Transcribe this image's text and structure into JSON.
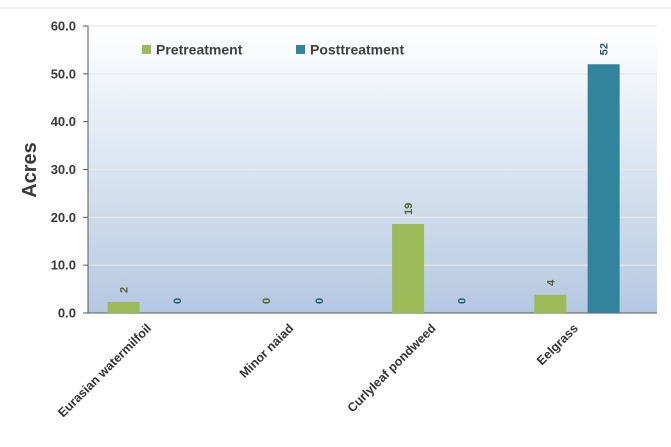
{
  "chart_data": {
    "type": "bar",
    "title": "",
    "xlabel": "",
    "ylabel": "Acres",
    "ylim": [
      0,
      60
    ],
    "yticks": [
      "0.0",
      "10.0",
      "20.0",
      "30.0",
      "40.0",
      "50.0",
      "60.0"
    ],
    "categories": [
      "Eurasian watermilfoil",
      "Minor naiad",
      "Curlyleaf pondweed",
      "Eelgrass"
    ],
    "series": [
      {
        "name": "Pretreatment",
        "color": "#9bbb59",
        "label_color": "#4f6228",
        "values": [
          2.3,
          0,
          18.6,
          3.8
        ],
        "labels": [
          "2",
          "0",
          "19",
          "4"
        ]
      },
      {
        "name": "Posttreatment",
        "color": "#31849b",
        "label_color": "#215968",
        "values": [
          0,
          0,
          0,
          52
        ],
        "labels": [
          "0",
          "0",
          "0",
          "52"
        ]
      }
    ],
    "grid": true,
    "legend_position": "top-left"
  }
}
